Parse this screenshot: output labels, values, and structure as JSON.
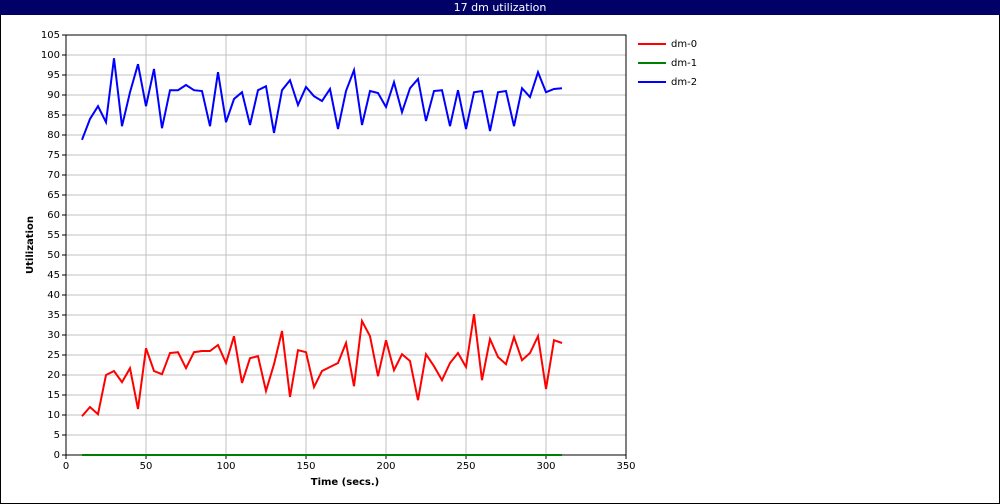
{
  "chart_data": {
    "type": "line",
    "title": "17 dm utilization",
    "xlabel": "Time (secs.)",
    "ylabel": "Utilization",
    "x": [
      10,
      15,
      20,
      25,
      30,
      35,
      40,
      45,
      50,
      55,
      60,
      65,
      70,
      75,
      80,
      85,
      90,
      95,
      100,
      105,
      110,
      115,
      120,
      125,
      130,
      135,
      140,
      145,
      150,
      155,
      160,
      165,
      170,
      175,
      180,
      185,
      190,
      195,
      200,
      205,
      210,
      215,
      220,
      225,
      230,
      235,
      240,
      245,
      250,
      255,
      260,
      265,
      270,
      275,
      280,
      285,
      290,
      295,
      300,
      305,
      310
    ],
    "series": [
      {
        "name": "dm-0",
        "color": "#ff0000",
        "values": [
          9.7,
          12,
          10.2,
          20,
          21,
          18.2,
          21.7,
          11.5,
          26.7,
          21,
          20.2,
          25.5,
          25.7,
          21.7,
          25.7,
          26,
          26,
          27.5,
          23,
          29.7,
          18,
          24.2,
          24.7,
          16,
          22.7,
          31,
          14.5,
          26.2,
          25.7,
          17,
          21,
          22,
          23,
          28,
          17.2,
          33.5,
          29.7,
          19.7,
          28.7,
          21.2,
          25.2,
          23.5,
          13.7,
          25.2,
          22.2,
          18.7,
          23,
          25.5,
          22,
          35.2,
          18.7,
          29,
          24.5,
          22.7,
          29.5,
          23.7,
          25.5,
          29.7,
          16.5,
          28.7,
          28
        ]
      },
      {
        "name": "dm-1",
        "color": "#008000",
        "values": [
          0,
          0,
          0,
          0,
          0,
          0,
          0,
          0,
          0,
          0,
          0,
          0,
          0,
          0,
          0,
          0,
          0,
          0,
          0,
          0,
          0,
          0,
          0,
          0,
          0,
          0,
          0,
          0,
          0,
          0,
          0,
          0,
          0,
          0,
          0,
          0,
          0,
          0,
          0,
          0,
          0,
          0,
          0,
          0,
          0,
          0,
          0,
          0,
          0,
          0,
          0,
          0,
          0,
          0,
          0,
          0,
          0,
          0,
          0,
          0,
          0
        ]
      },
      {
        "name": "dm-2",
        "color": "#0000ff",
        "values": [
          78.8,
          84,
          87.2,
          83.2,
          99.2,
          82.2,
          90.7,
          97.7,
          87.2,
          96.5,
          81.7,
          91.2,
          91.2,
          92.5,
          91.2,
          91,
          82.2,
          95.7,
          83.2,
          89,
          90.7,
          82.5,
          91.2,
          92.2,
          80.5,
          91.2,
          93.7,
          87.5,
          92,
          89.7,
          88.5,
          91.5,
          81.5,
          91,
          96.2,
          82.5,
          91,
          90.5,
          87,
          93.2,
          85.7,
          91.7,
          94,
          83.5,
          91,
          91.2,
          82.2,
          91.2,
          81.5,
          90.7,
          91,
          81,
          90.7,
          91,
          82.2,
          91.7,
          89.5,
          95.7,
          90.7,
          91.5,
          91.7
        ]
      }
    ],
    "xlim": [
      0,
      350
    ],
    "xticks": [
      0,
      50,
      100,
      150,
      200,
      250,
      300,
      350
    ],
    "ylim": [
      0,
      105
    ],
    "yticks": [
      0,
      5,
      10,
      15,
      20,
      25,
      30,
      35,
      40,
      45,
      50,
      55,
      60,
      65,
      70,
      75,
      80,
      85,
      90,
      95,
      100,
      105
    ],
    "grid": true,
    "legend": "right"
  }
}
